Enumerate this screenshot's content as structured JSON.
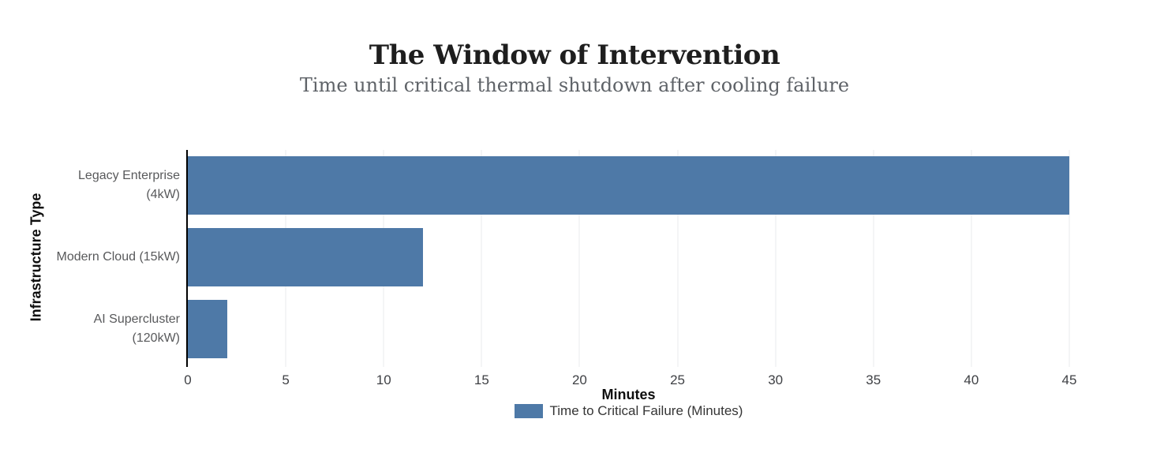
{
  "chart_data": {
    "type": "bar",
    "orientation": "horizontal",
    "title": "The Window of Intervention",
    "subtitle": "Time until critical thermal shutdown after cooling failure",
    "categories": [
      "Legacy Enterprise\n(4kW)",
      "Modern Cloud (15kW)",
      "AI Supercluster\n(120kW)"
    ],
    "values": [
      45,
      12,
      2
    ],
    "series_name": "Time to Critical Failure (Minutes)",
    "xlabel": "Minutes",
    "ylabel": "Infrastructure Type",
    "xlim": [
      0,
      45
    ],
    "xticks": [
      0,
      5,
      10,
      15,
      20,
      25,
      30,
      35,
      40,
      45
    ],
    "grid": true,
    "legend_position": "bottom",
    "colors": {
      "bar": "#4e79a7",
      "grid": "#e9ebee",
      "axis": "#000000",
      "title": "#1e1e1e",
      "subtitle": "#5f6368",
      "category": "#58595b",
      "tick": "#3f4145",
      "axis_label": "#0e0e0e",
      "legend_text": "#353535",
      "background": "#ffffff"
    }
  }
}
